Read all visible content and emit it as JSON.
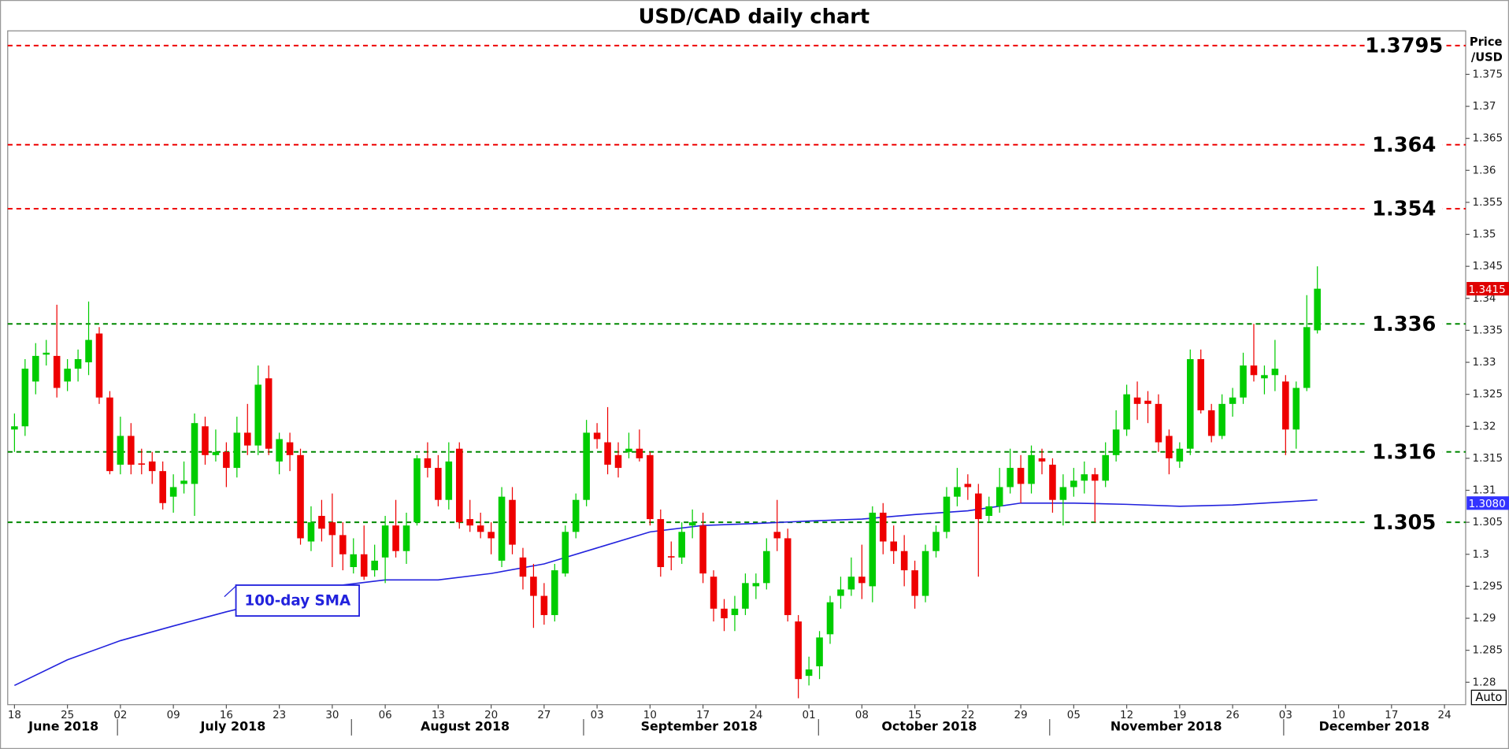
{
  "chart_data": {
    "type": "candlestick",
    "title": "USD/CAD daily chart",
    "y_axis_label": [
      "Price",
      "/USD"
    ],
    "auto_button": "Auto",
    "annotation": "100-day SMA",
    "months": [
      "June 2018",
      "July 2018",
      "August 2018",
      "September 2018",
      "October 2018",
      "November 2018",
      "December 2018"
    ],
    "xlim": [
      -0.64,
      137
    ],
    "xticks": [
      {
        "value": 0,
        "label": "18"
      },
      {
        "value": 5,
        "label": "25"
      },
      {
        "value": 10,
        "label": "02"
      },
      {
        "value": 15,
        "label": "09"
      },
      {
        "value": 20,
        "label": "16"
      },
      {
        "value": 25,
        "label": "23"
      },
      {
        "value": 30,
        "label": "30"
      },
      {
        "value": 35,
        "label": "06"
      },
      {
        "value": 40,
        "label": "13"
      },
      {
        "value": 45,
        "label": "20"
      },
      {
        "value": 50,
        "label": "27"
      },
      {
        "value": 55,
        "label": "03"
      },
      {
        "value": 60,
        "label": "10"
      },
      {
        "value": 65,
        "label": "17"
      },
      {
        "value": 70,
        "label": "24"
      },
      {
        "value": 75,
        "label": "01"
      },
      {
        "value": 80,
        "label": "08"
      },
      {
        "value": 85,
        "label": "15"
      },
      {
        "value": 90,
        "label": "22"
      },
      {
        "value": 95,
        "label": "29"
      },
      {
        "value": 100,
        "label": "05"
      },
      {
        "value": 105,
        "label": "12"
      },
      {
        "value": 110,
        "label": "19"
      },
      {
        "value": 115,
        "label": "26"
      },
      {
        "value": 120,
        "label": "03"
      },
      {
        "value": 125,
        "label": "10"
      },
      {
        "value": 130,
        "label": "17"
      },
      {
        "value": 135,
        "label": "24"
      }
    ],
    "ylim": [
      1.2765,
      1.3818
    ],
    "yticks": [
      1.28,
      1.285,
      1.29,
      1.295,
      1.3,
      1.305,
      1.31,
      1.315,
      1.32,
      1.325,
      1.33,
      1.335,
      1.34,
      1.345,
      1.35,
      1.355,
      1.36,
      1.365,
      1.37,
      1.375
    ],
    "up_color": "#00cc00",
    "down_color": "#ee0000",
    "open": [
      1.3195,
      1.32,
      1.327,
      1.3312,
      1.331,
      1.327,
      1.329,
      1.33,
      1.3345,
      1.3245,
      1.314,
      1.3185,
      1.3142,
      1.3145,
      1.313,
      1.309,
      1.311,
      1.311,
      1.32,
      1.3155,
      1.316,
      1.3135,
      1.319,
      1.317,
      1.3275,
      1.3145,
      1.3175,
      1.3155,
      1.302,
      1.306,
      1.305,
      1.303,
      1.298,
      1.3,
      1.2975,
      1.2995,
      1.3045,
      1.3005,
      1.305,
      1.315,
      1.3135,
      1.3085,
      1.3165,
      1.3055,
      1.3045,
      1.3035,
      1.299,
      1.3085,
      1.2995,
      1.2965,
      1.2935,
      1.2905,
      1.297,
      1.3035,
      1.3085,
      1.319,
      1.3175,
      1.3155,
      1.316,
      1.3165,
      1.3155,
      1.3055,
      1.2997,
      1.2995,
      1.3045,
      1.3045,
      1.2965,
      1.2915,
      1.2905,
      1.2915,
      1.295,
      1.2955,
      1.3035,
      1.3025,
      1.2895,
      1.281,
      1.2825,
      1.2875,
      1.2935,
      1.2945,
      1.2965,
      1.295,
      1.3065,
      1.302,
      1.3005,
      1.2975,
      1.2935,
      1.3005,
      1.3035,
      1.309,
      1.311,
      1.3095,
      1.306,
      1.3075,
      1.3105,
      1.3135,
      1.311,
      1.315,
      1.314,
      1.3085,
      1.3105,
      1.3115,
      1.3125,
      1.3115,
      1.3155,
      1.3195,
      1.3245,
      1.324,
      1.3235,
      1.3185,
      1.3145,
      1.3165,
      1.3305,
      1.3225,
      1.3185,
      1.3235,
      1.3245,
      1.3295,
      1.3275,
      1.328,
      1.327,
      1.3195,
      1.326,
      1.335
    ],
    "high": [
      1.322,
      1.3305,
      1.333,
      1.3335,
      1.339,
      1.3305,
      1.332,
      1.3395,
      1.3355,
      1.3255,
      1.3215,
      1.3205,
      1.3165,
      1.316,
      1.3145,
      1.3125,
      1.3145,
      1.322,
      1.3215,
      1.3195,
      1.3175,
      1.3215,
      1.3235,
      1.3295,
      1.3295,
      1.319,
      1.319,
      1.3165,
      1.3075,
      1.3085,
      1.3095,
      1.305,
      1.3025,
      1.3045,
      1.3015,
      1.306,
      1.3085,
      1.3065,
      1.3155,
      1.3175,
      1.3155,
      1.3175,
      1.3175,
      1.3085,
      1.3065,
      1.305,
      1.3105,
      1.3105,
      1.301,
      1.2985,
      1.2955,
      1.2985,
      1.3045,
      1.3095,
      1.321,
      1.3205,
      1.323,
      1.3175,
      1.319,
      1.3195,
      1.316,
      1.307,
      1.302,
      1.305,
      1.307,
      1.3065,
      1.2975,
      1.293,
      1.2935,
      1.297,
      1.297,
      1.3025,
      1.3085,
      1.304,
      1.2905,
      1.284,
      1.288,
      1.2935,
      1.2965,
      1.2995,
      1.3015,
      1.3075,
      1.308,
      1.3045,
      1.303,
      1.299,
      1.3015,
      1.3045,
      1.3105,
      1.3135,
      1.3125,
      1.311,
      1.309,
      1.3135,
      1.3165,
      1.3155,
      1.317,
      1.3165,
      1.315,
      1.3125,
      1.3135,
      1.3145,
      1.3135,
      1.3175,
      1.3225,
      1.3265,
      1.327,
      1.3255,
      1.325,
      1.3195,
      1.3175,
      1.332,
      1.332,
      1.3235,
      1.325,
      1.326,
      1.3315,
      1.336,
      1.3295,
      1.3335,
      1.328,
      1.327,
      1.3405,
      1.345
    ],
    "low": [
      1.316,
      1.3185,
      1.325,
      1.3295,
      1.3245,
      1.3255,
      1.327,
      1.328,
      1.3235,
      1.3125,
      1.3125,
      1.3125,
      1.3125,
      1.311,
      1.307,
      1.3065,
      1.3095,
      1.306,
      1.314,
      1.3145,
      1.3105,
      1.312,
      1.3155,
      1.3155,
      1.3155,
      1.3125,
      1.313,
      1.3015,
      1.3005,
      1.302,
      1.298,
      1.2975,
      1.297,
      1.296,
      1.2965,
      1.2955,
      1.2995,
      1.2985,
      1.3045,
      1.312,
      1.3075,
      1.307,
      1.304,
      1.3035,
      1.3025,
      1.3,
      1.298,
      1.3,
      1.2945,
      1.2885,
      1.289,
      1.2895,
      1.2965,
      1.3025,
      1.3075,
      1.3165,
      1.3125,
      1.312,
      1.315,
      1.3145,
      1.3045,
      1.2965,
      1.2975,
      1.2985,
      1.3025,
      1.2955,
      1.2895,
      1.288,
      1.288,
      1.2905,
      1.293,
      1.2945,
      1.3005,
      1.2895,
      1.2775,
      1.2795,
      1.2805,
      1.286,
      1.2915,
      1.2935,
      1.293,
      1.2925,
      1.3,
      1.2985,
      1.295,
      1.2915,
      1.2925,
      1.2995,
      1.3025,
      1.3075,
      1.3085,
      1.2965,
      1.305,
      1.3065,
      1.3095,
      1.308,
      1.3095,
      1.3125,
      1.3065,
      1.3045,
      1.309,
      1.3095,
      1.305,
      1.3105,
      1.3145,
      1.3185,
      1.321,
      1.3205,
      1.316,
      1.3125,
      1.3135,
      1.3155,
      1.322,
      1.3175,
      1.318,
      1.3215,
      1.3235,
      1.327,
      1.325,
      1.3255,
      1.3155,
      1.3165,
      1.3255,
      1.3345
    ],
    "close": [
      1.32,
      1.329,
      1.331,
      1.3315,
      1.326,
      1.329,
      1.3305,
      1.3335,
      1.3245,
      1.313,
      1.3185,
      1.314,
      1.314,
      1.313,
      1.308,
      1.3105,
      1.3115,
      1.3205,
      1.3155,
      1.316,
      1.3135,
      1.319,
      1.317,
      1.3265,
      1.3165,
      1.318,
      1.3155,
      1.3025,
      1.305,
      1.304,
      1.303,
      1.3,
      1.3,
      1.2965,
      1.299,
      1.3045,
      1.3005,
      1.3045,
      1.315,
      1.3135,
      1.3085,
      1.3145,
      1.305,
      1.3045,
      1.3035,
      1.3025,
      1.309,
      1.3015,
      1.2965,
      1.2935,
      1.2905,
      1.2975,
      1.3035,
      1.3085,
      1.319,
      1.318,
      1.314,
      1.3135,
      1.3165,
      1.315,
      1.3055,
      1.298,
      1.2995,
      1.3035,
      1.305,
      1.297,
      1.2915,
      1.29,
      1.2915,
      1.2955,
      1.2955,
      1.3005,
      1.3025,
      1.2905,
      1.2805,
      1.282,
      1.287,
      1.2925,
      1.2945,
      1.2965,
      1.2955,
      1.3065,
      1.302,
      1.3005,
      1.2975,
      1.2935,
      1.3005,
      1.3035,
      1.309,
      1.3105,
      1.3105,
      1.3055,
      1.3075,
      1.3105,
      1.3135,
      1.311,
      1.3155,
      1.3145,
      1.3085,
      1.3105,
      1.3115,
      1.3125,
      1.3115,
      1.3155,
      1.3195,
      1.325,
      1.3235,
      1.3235,
      1.3175,
      1.315,
      1.3165,
      1.3305,
      1.3225,
      1.3185,
      1.3235,
      1.3245,
      1.3295,
      1.328,
      1.328,
      1.329,
      1.3195,
      1.326,
      1.3355,
      1.3415
    ],
    "sma": {
      "name": "100-day SMA",
      "color": "#2222dd",
      "x": [
        0,
        5,
        10,
        15,
        20,
        25,
        30,
        35,
        40,
        45,
        50,
        55,
        60,
        65,
        70,
        75,
        80,
        85,
        90,
        95,
        100,
        105,
        110,
        115,
        120,
        123
      ],
      "values": [
        1.2795,
        1.2835,
        1.2865,
        1.2888,
        1.291,
        1.293,
        1.295,
        1.296,
        1.296,
        1.297,
        1.2985,
        1.301,
        1.3035,
        1.3045,
        1.3048,
        1.3052,
        1.3055,
        1.3062,
        1.3068,
        1.308,
        1.308,
        1.3078,
        1.3075,
        1.3077,
        1.3082,
        1.3085
      ]
    },
    "levels": [
      {
        "value": 1.3795,
        "color": "#ee0000"
      },
      {
        "value": 1.364,
        "color": "#ee0000"
      },
      {
        "value": 1.354,
        "color": "#ee0000"
      },
      {
        "value": 1.336,
        "color": "#008800"
      },
      {
        "value": 1.316,
        "color": "#008800"
      },
      {
        "value": 1.305,
        "color": "#008800"
      }
    ],
    "price_tags": [
      {
        "value": 1.3415,
        "label": "1.3415",
        "color": "#e00000"
      },
      {
        "value": 1.308,
        "label": "1.3080",
        "color": "#3333ff"
      }
    ]
  }
}
